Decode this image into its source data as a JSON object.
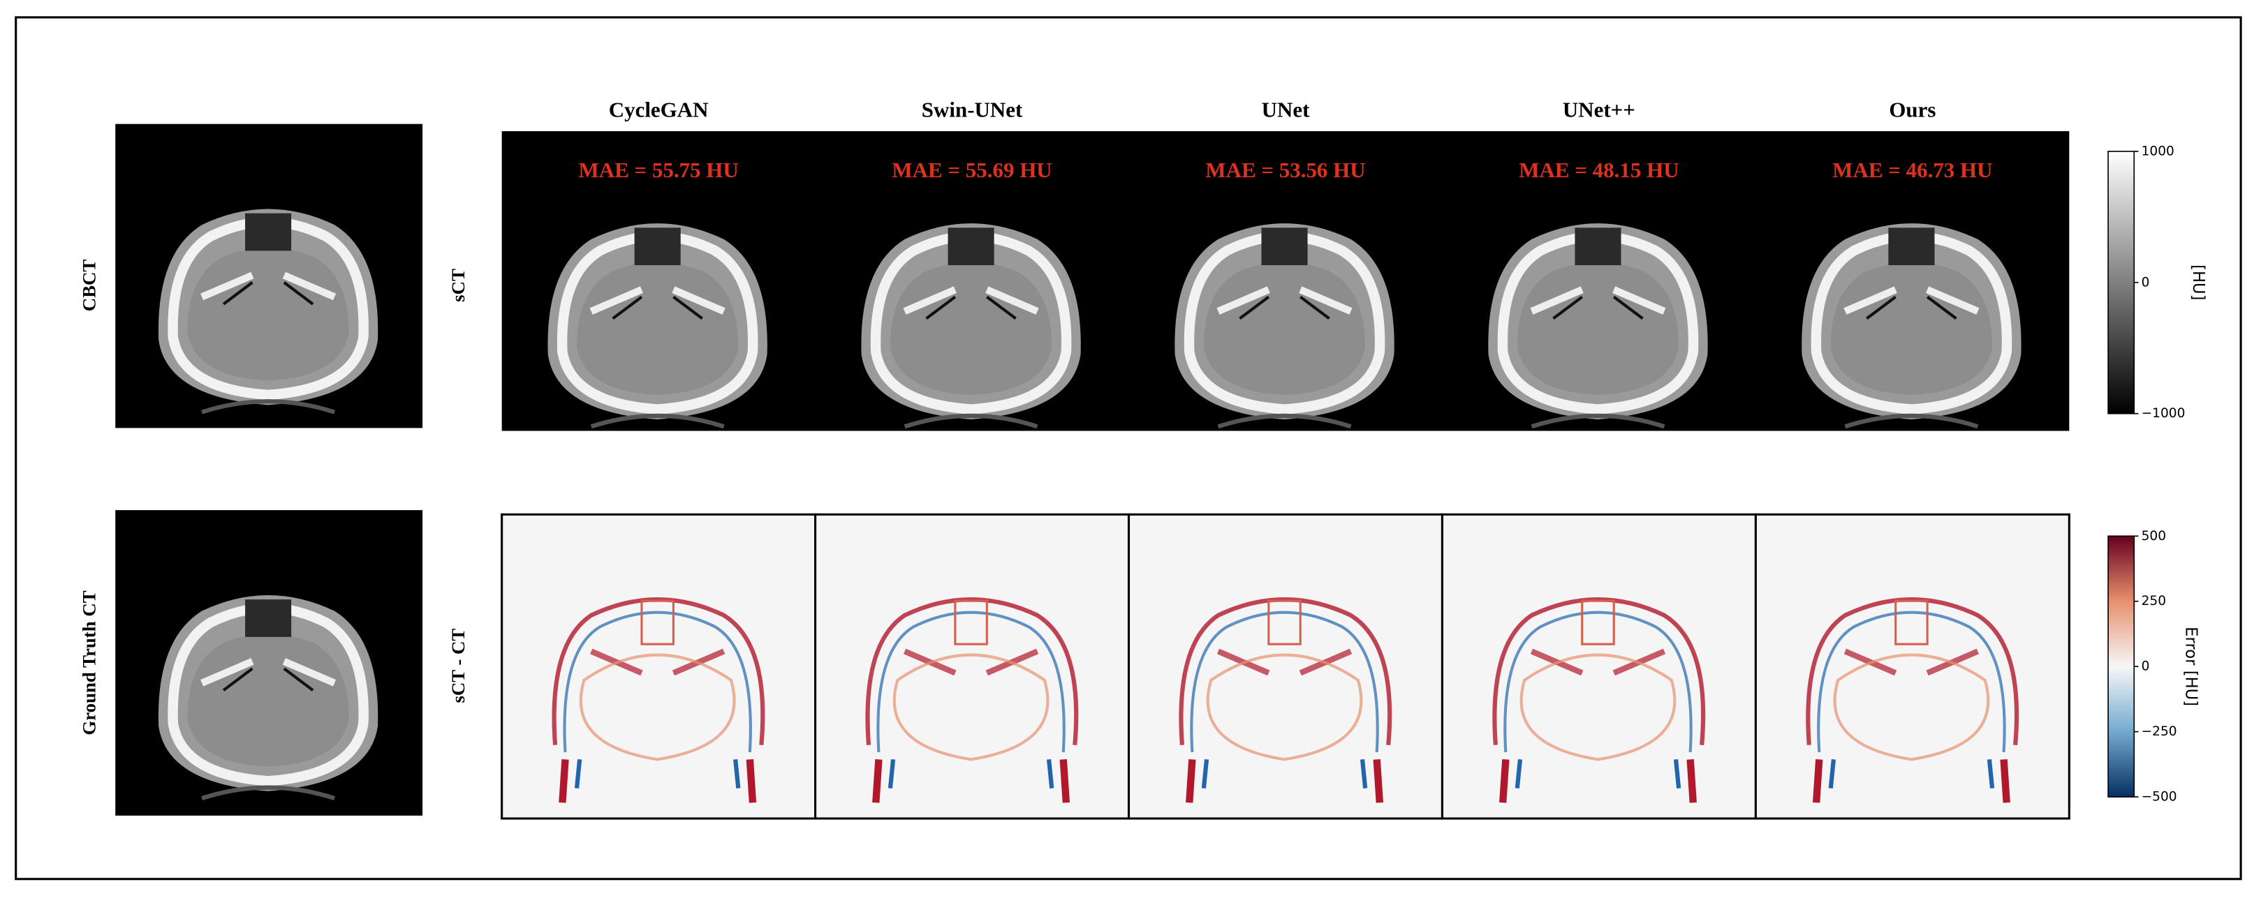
{
  "row_labels": {
    "cbct": "CBCT",
    "ground_truth": "Ground Truth CT",
    "sct": "sCT",
    "difference": "sCT - CT"
  },
  "columns": [
    {
      "title": "CycleGAN",
      "mae": "MAE = 55.75 HU"
    },
    {
      "title": "Swin-UNet",
      "mae": "MAE = 55.69 HU"
    },
    {
      "title": "UNet",
      "mae": "MAE = 53.56 HU"
    },
    {
      "title": "UNet++",
      "mae": "MAE = 48.15 HU"
    },
    {
      "title": "Ours",
      "mae": "MAE = 46.73 HU"
    }
  ],
  "colorbars": [
    {
      "label": "[HU]",
      "lim": [
        -1000,
        1000
      ],
      "ticks": [
        1000,
        0,
        {
          "value": -1000,
          "label": "−1000"
        }
      ]
    },
    {
      "label": "Error [HU]",
      "lim": [
        -500,
        500
      ],
      "ticks": [
        500,
        250,
        0,
        {
          "value": -250,
          "label": "−250"
        },
        {
          "value": -500,
          "label": "−500"
        }
      ]
    }
  ]
}
